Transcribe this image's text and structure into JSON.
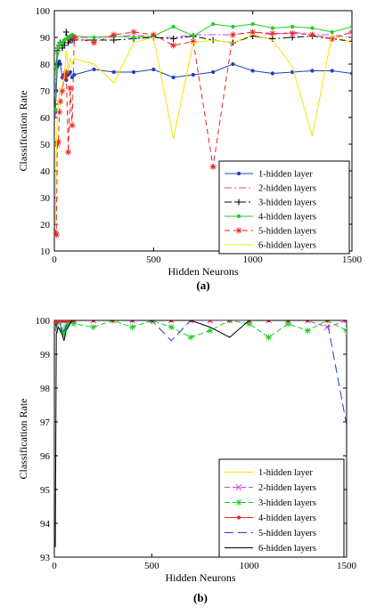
{
  "chart_data": [
    {
      "type": "line",
      "panel_label": "(a)",
      "xlabel": "Hidden Neurons",
      "ylabel": "Classification Rate",
      "xlim": [
        0,
        1500
      ],
      "ylim": [
        10,
        100
      ],
      "xticks": [
        0,
        500,
        1000,
        1500
      ],
      "yticks": [
        10,
        20,
        30,
        40,
        50,
        60,
        70,
        80,
        90,
        100
      ],
      "grid": false,
      "legend_position": "bottom-right",
      "x": [
        5,
        10,
        15,
        20,
        25,
        30,
        40,
        50,
        60,
        70,
        80,
        90,
        100,
        200,
        300,
        400,
        500,
        600,
        700,
        800,
        900,
        1000,
        1100,
        1200,
        1300,
        1400,
        1500
      ],
      "series": [
        {
          "name": "1-hidden layer",
          "color": "#1f3fbf",
          "dash": "",
          "marker": "dot",
          "values": [
            62,
            70,
            79,
            80,
            81,
            80,
            75,
            76,
            74,
            76,
            77,
            75,
            76,
            78,
            77,
            77,
            78,
            75,
            76,
            77,
            80,
            77.5,
            76.5,
            77,
            77.5,
            77.5,
            76.5
          ]
        },
        {
          "name": "2-hidden layers",
          "color": "#cc44cc",
          "dash": "8 3 2 3",
          "marker": "none",
          "values": [
            60,
            75,
            82,
            84,
            86,
            87,
            88,
            89,
            89,
            90,
            90,
            89,
            90,
            90,
            90,
            91,
            90,
            90,
            91,
            91,
            91,
            92,
            91,
            92,
            91,
            91,
            90
          ]
        },
        {
          "name": "3-hidden layers",
          "color": "#000000",
          "dash": "8 3 2 3",
          "marker": "plus",
          "values": [
            65,
            80,
            85,
            86,
            87,
            88,
            86,
            87,
            92,
            88,
            89,
            89,
            89,
            89,
            89,
            89.5,
            90,
            89.5,
            90.5,
            89,
            88,
            90.5,
            89.5,
            90,
            90.5,
            89.5,
            88.5
          ]
        },
        {
          "name": "4-hidden layers",
          "color": "#22cc22",
          "dash": "",
          "marker": "dot",
          "values": [
            63,
            78,
            84,
            86,
            87,
            88,
            88,
            89,
            89.5,
            90,
            90.5,
            91,
            90.5,
            90,
            90.5,
            90,
            90.5,
            94,
            90.5,
            95,
            94,
            95,
            93.5,
            94,
            93.5,
            92,
            94
          ]
        },
        {
          "name": "5-hidden layers",
          "color": "#ee2222",
          "dash": "6 4",
          "marker": "star",
          "values": [
            17,
            16,
            50,
            51,
            62,
            66,
            70,
            75,
            77,
            47,
            71,
            57,
            90,
            88,
            91,
            92,
            91,
            87,
            88.5,
            41.5,
            91,
            92,
            91.5,
            91.5,
            91,
            89.5,
            92
          ]
        },
        {
          "name": "6-hidden layers",
          "color": "#f2e600",
          "dash": "",
          "marker": "none",
          "values": [
            20,
            45,
            60,
            65,
            68,
            70,
            72,
            75,
            85,
            78,
            82,
            80,
            82,
            80,
            73,
            88,
            90,
            52,
            88,
            89,
            88,
            91,
            89,
            79,
            53,
            91,
            88
          ]
        }
      ]
    },
    {
      "type": "line",
      "panel_label": "(b)",
      "xlabel": "Hidden Neurons",
      "ylabel": "Classification Rate",
      "xlim": [
        0,
        1500
      ],
      "ylim": [
        93,
        100
      ],
      "xticks": [
        0,
        500,
        1000,
        1500
      ],
      "yticks": [
        93,
        94,
        95,
        96,
        97,
        98,
        99,
        100
      ],
      "grid": false,
      "legend_position": "bottom-right",
      "x": [
        5,
        10,
        20,
        30,
        40,
        50,
        60,
        70,
        80,
        90,
        100,
        200,
        300,
        400,
        500,
        600,
        700,
        800,
        900,
        1000,
        1100,
        1200,
        1300,
        1400,
        1500
      ],
      "series": [
        {
          "name": "1-hidden layer",
          "color": "#f2e600",
          "dash": "",
          "marker": "none",
          "values": [
            99.8,
            100,
            100,
            100,
            100,
            100,
            100,
            100,
            100,
            100,
            100,
            100,
            100,
            100,
            100,
            100,
            100,
            100,
            100,
            100,
            100,
            100,
            100,
            100,
            100
          ]
        },
        {
          "name": "2-hidden layers",
          "color": "#cc44cc",
          "dash": "6 3",
          "marker": "x",
          "values": [
            99.7,
            100,
            100,
            100,
            100,
            100,
            100,
            100,
            100,
            100,
            100,
            100,
            100,
            100,
            100,
            100,
            100,
            100,
            100,
            100,
            100,
            100,
            100,
            99.8,
            100
          ]
        },
        {
          "name": "3-hidden layers",
          "color": "#22cc22",
          "dash": "6 3",
          "marker": "star",
          "values": [
            99.8,
            99.9,
            100,
            100,
            99.7,
            99.6,
            99.8,
            99.9,
            100,
            100,
            99.9,
            99.8,
            100,
            99.8,
            100,
            99.8,
            99.5,
            99.7,
            100,
            99.9,
            99.5,
            99.9,
            99.7,
            100,
            99.7
          ]
        },
        {
          "name": "4-hidden layers",
          "color": "#ee2222",
          "dash": "",
          "marker": "dot",
          "values": [
            99.9,
            100,
            100,
            100,
            100,
            100,
            100,
            100,
            100,
            100,
            100,
            100,
            100,
            100,
            100,
            100,
            100,
            100,
            100,
            100,
            100,
            100,
            100,
            100,
            100
          ]
        },
        {
          "name": "5-hidden layers",
          "color": "#1f3fbf",
          "dash": "10 5",
          "marker": "none",
          "values": [
            99.9,
            99.8,
            100,
            99.9,
            99.6,
            99.7,
            99.8,
            100,
            100,
            100,
            100,
            100,
            100,
            100,
            100,
            99.4,
            100,
            100,
            100,
            100,
            100,
            100,
            100,
            100,
            96.9
          ]
        },
        {
          "name": "6-hidden layers",
          "color": "#000000",
          "dash": "",
          "marker": "none",
          "values": [
            93.3,
            99.6,
            99.8,
            99.7,
            99.6,
            99.4,
            99.7,
            99.8,
            99.9,
            100,
            100,
            100,
            100,
            100,
            100,
            100,
            100,
            99.8,
            99.5,
            100,
            100,
            100,
            100,
            100,
            100
          ]
        }
      ]
    }
  ]
}
